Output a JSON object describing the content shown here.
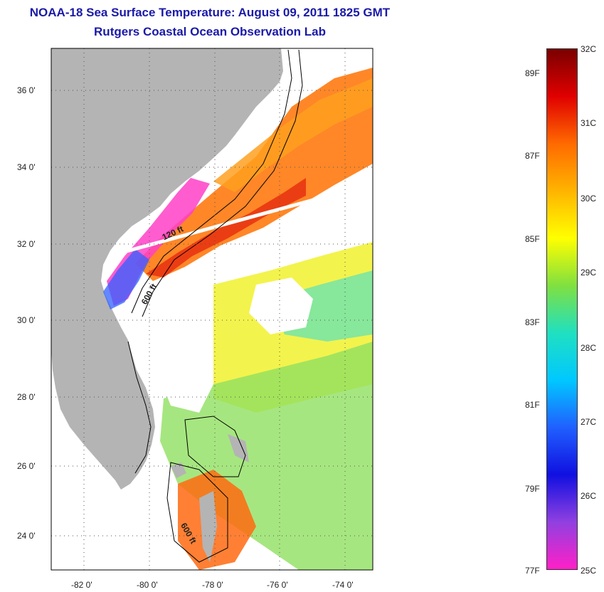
{
  "title": {
    "line1": "NOAA-18 Sea Surface Temperature:  August 09, 2011 1825 GMT",
    "line2": "Rutgers Coastal Ocean Observation Lab"
  },
  "map": {
    "lat_labels": [
      "36 0'",
      "34 0'",
      "32 0'",
      "30 0'",
      "28 0'",
      "26 0'",
      "24 0'"
    ],
    "lon_labels": [
      "-82 0'",
      "-80 0'",
      "-78 0'",
      "-76 0'",
      "-74 0'"
    ],
    "contour_labels": [
      "120 ft",
      "600 ft",
      "600 ft"
    ],
    "land_color": "#b4b4b4",
    "no_data_color": "#ffffff"
  },
  "colorbar": {
    "celsius": [
      "32C",
      "31C",
      "30C",
      "29C",
      "28C",
      "27C",
      "26C",
      "25C"
    ],
    "fahrenheit": [
      "89F",
      "87F",
      "85F",
      "83F",
      "81F",
      "79F",
      "77F"
    ],
    "colors": [
      "#7a0000",
      "#e00000",
      "#ff6a00",
      "#ffb400",
      "#ffff00",
      "#80e040",
      "#20e0c0",
      "#00c8ff",
      "#2060ff",
      "#1010e0",
      "#9040e0",
      "#ff20c8"
    ]
  }
}
